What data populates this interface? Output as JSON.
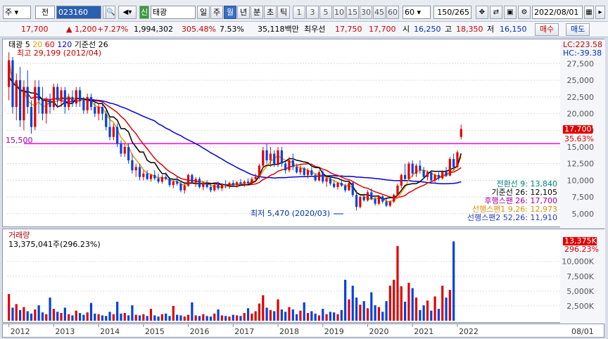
{
  "toolbar": {
    "type_combo": "주",
    "prefix_label": "전",
    "code": "023160",
    "market_badge": "신",
    "name": "태광",
    "periods": [
      "일",
      "주",
      "월",
      "년",
      "분",
      "초",
      "틱"
    ],
    "active_period": "월",
    "nums": [
      "1",
      "3",
      "5",
      "10",
      "15",
      "30",
      "45",
      "60"
    ],
    "count_value": "60",
    "page_counter": "150",
    "page_total": "/265",
    "date": "2022/08/01"
  },
  "quote": {
    "price": "17,700",
    "change_arrow": "▲",
    "change": "1,200",
    "change_pct": "+7.27%",
    "volume": "1,994,302",
    "vol_ratio": "305.48%",
    "turnover": "7.53%",
    "amount": "35,118백만",
    "best_sell_label": "최우선",
    "best_sell": "17,750",
    "best_buy": "17,700",
    "low_label": "시",
    "open": "16,250",
    "high_label": "고",
    "high": "18,350",
    "low2_label": "저",
    "low": "16,150",
    "buy_btn": "매수",
    "sell_btn": "매도"
  },
  "price_pane": {
    "name": "태광",
    "ma_labels": [
      "5",
      "20",
      "60",
      "120",
      "기준선 26"
    ],
    "high_note": "최고 29,199 (2012/04)",
    "low_note": "최저 5,470 (2020/03)",
    "lc": "LC:223.58",
    "hc": "HC:-39.38",
    "y_ticks": [
      "27,500",
      "25,000",
      "22,500",
      "20,000",
      "17,500",
      "15,000",
      "12,500",
      "10,000",
      "7,500",
      "5,000"
    ],
    "current_price_tag": "17,700",
    "pct_tag": "35.63%",
    "hline_label": "15,500",
    "indicators": [
      {
        "text": "전환선 9: 13,840",
        "color": "#008080"
      },
      {
        "text": "기준선 26: 12,105",
        "color": "#000000"
      },
      {
        "text": "후행스팬 26: 17,700",
        "color": "#a000a0"
      },
      {
        "text": "선행스팬1 9,26: 12,973",
        "color": "#e09000"
      },
      {
        "text": "선행스팬2 52,26: 11,910",
        "color": "#2040c0"
      }
    ]
  },
  "volume_pane": {
    "title": "거래량",
    "value": "13,375,041주(296.23%)",
    "y_ticks": [
      "10,000K",
      "7,500K",
      "5,000K",
      "2,500K"
    ],
    "tag": "13,375K",
    "tag_pct": "296.23%"
  },
  "x_axis": {
    "years": [
      "2012",
      "2013",
      "2014",
      "2015",
      "2016",
      "2017",
      "2018",
      "2019",
      "2020",
      "2021",
      "2022"
    ],
    "right_label": "08/01"
  },
  "chart_data": {
    "type": "candlestick",
    "ylim": [
      3500,
      30500
    ],
    "hline": 15500,
    "candles": [
      [
        24000,
        29199,
        22000,
        28000
      ],
      [
        28000,
        28500,
        20000,
        21000
      ],
      [
        21000,
        26000,
        19000,
        25000
      ],
      [
        25000,
        27000,
        18000,
        19000
      ],
      [
        19000,
        25000,
        17500,
        24000
      ],
      [
        24000,
        26500,
        20000,
        21000
      ],
      [
        21000,
        22000,
        17000,
        18000
      ],
      [
        18000,
        25000,
        17500,
        24000
      ],
      [
        24000,
        25000,
        20000,
        22000
      ],
      [
        22000,
        24000,
        19000,
        20000
      ],
      [
        20000,
        22500,
        18500,
        22000
      ],
      [
        22000,
        23000,
        20000,
        21000
      ],
      [
        21000,
        24500,
        20500,
        24000
      ],
      [
        24000,
        24500,
        21000,
        22000
      ],
      [
        22000,
        24000,
        21000,
        23500
      ],
      [
        23500,
        24000,
        20000,
        21000
      ],
      [
        21000,
        23000,
        20500,
        22500
      ],
      [
        22500,
        23500,
        21000,
        21500
      ],
      [
        21500,
        24000,
        21000,
        23500
      ],
      [
        23500,
        24000,
        21000,
        22000
      ],
      [
        22000,
        22500,
        20000,
        20500
      ],
      [
        20500,
        23000,
        20000,
        22500
      ],
      [
        22500,
        23000,
        20500,
        21000
      ],
      [
        21000,
        22000,
        19500,
        20000
      ],
      [
        20000,
        21500,
        19000,
        21000
      ],
      [
        21000,
        22000,
        19000,
        20000
      ],
      [
        20000,
        20500,
        17500,
        18000
      ],
      [
        18000,
        19500,
        16000,
        16500
      ],
      [
        16500,
        18500,
        16000,
        18000
      ],
      [
        18000,
        18500,
        15000,
        15500
      ],
      [
        15500,
        16000,
        13500,
        14000
      ],
      [
        14000,
        15500,
        13500,
        15000
      ],
      [
        15000,
        15500,
        12500,
        13000
      ],
      [
        13000,
        14000,
        11000,
        11500
      ],
      [
        11500,
        12500,
        10500,
        12000
      ],
      [
        12000,
        12500,
        10000,
        10500
      ],
      [
        10500,
        11500,
        10000,
        11000
      ],
      [
        11000,
        11500,
        10000,
        10200
      ],
      [
        10200,
        11000,
        9800,
        10800
      ],
      [
        10800,
        11500,
        10000,
        10300
      ],
      [
        10300,
        11000,
        9500,
        9800
      ],
      [
        9800,
        10800,
        9500,
        10500
      ],
      [
        10500,
        11200,
        10000,
        10200
      ],
      [
        10200,
        10500,
        9000,
        9300
      ],
      [
        9300,
        10000,
        8800,
        9800
      ],
      [
        9800,
        10500,
        9200,
        9500
      ],
      [
        9500,
        10000,
        8200,
        8500
      ],
      [
        8500,
        9500,
        8000,
        9200
      ],
      [
        9200,
        11000,
        9000,
        10800
      ],
      [
        10800,
        11000,
        9500,
        9700
      ],
      [
        9700,
        10500,
        9000,
        10200
      ],
      [
        10200,
        10500,
        8800,
        9000
      ],
      [
        9000,
        9800,
        8500,
        9500
      ],
      [
        9500,
        10000,
        8800,
        9000
      ],
      [
        9000,
        9500,
        8200,
        8500
      ],
      [
        8500,
        9500,
        8300,
        9300
      ],
      [
        9300,
        9800,
        8500,
        8800
      ],
      [
        8800,
        9600,
        8400,
        9400
      ],
      [
        9400,
        10000,
        8800,
        9200
      ],
      [
        9200,
        9800,
        8700,
        9600
      ],
      [
        9600,
        10000,
        9000,
        9300
      ],
      [
        9300,
        9900,
        8900,
        9700
      ],
      [
        9700,
        10200,
        9200,
        9500
      ],
      [
        9500,
        10000,
        9000,
        9800
      ],
      [
        9800,
        10300,
        9400,
        9600
      ],
      [
        9600,
        10500,
        9300,
        10200
      ],
      [
        10200,
        11000,
        9800,
        10500
      ],
      [
        10500,
        12500,
        10200,
        12200
      ],
      [
        12200,
        15000,
        11800,
        14500
      ],
      [
        14500,
        15500,
        12500,
        13000
      ],
      [
        13000,
        15000,
        12000,
        14000
      ],
      [
        14000,
        14500,
        12000,
        12500
      ],
      [
        12500,
        15000,
        12000,
        14500
      ],
      [
        14500,
        15000,
        12000,
        12500
      ],
      [
        12500,
        13000,
        11000,
        11500
      ],
      [
        11500,
        13500,
        11200,
        13000
      ],
      [
        13000,
        14000,
        11500,
        12000
      ],
      [
        12000,
        12500,
        11000,
        11200
      ],
      [
        11200,
        12200,
        10800,
        11800
      ],
      [
        11800,
        12000,
        10500,
        10800
      ],
      [
        10800,
        11800,
        10300,
        11500
      ],
      [
        11500,
        12000,
        10500,
        10800
      ],
      [
        10800,
        11000,
        9800,
        10000
      ],
      [
        10000,
        11500,
        9800,
        11200
      ],
      [
        11200,
        11500,
        9500,
        9800
      ],
      [
        9800,
        10500,
        9000,
        10300
      ],
      [
        10300,
        10800,
        9200,
        9500
      ],
      [
        9500,
        10000,
        8800,
        9000
      ],
      [
        9000,
        9800,
        8600,
        9600
      ],
      [
        9600,
        10200,
        9000,
        9200
      ],
      [
        9200,
        9500,
        8200,
        8500
      ],
      [
        8500,
        9800,
        8400,
        9600
      ],
      [
        9600,
        9800,
        7500,
        7800
      ],
      [
        7800,
        8500,
        5470,
        6000
      ],
      [
        6000,
        7800,
        5800,
        7500
      ],
      [
        7500,
        8000,
        6800,
        7000
      ],
      [
        7000,
        8500,
        6800,
        8200
      ],
      [
        8200,
        8800,
        7000,
        7200
      ],
      [
        7200,
        7500,
        6200,
        6500
      ],
      [
        6500,
        7800,
        6300,
        7600
      ],
      [
        7600,
        7800,
        6500,
        6800
      ],
      [
        6800,
        7200,
        6000,
        6200
      ],
      [
        6200,
        7000,
        6000,
        6800
      ],
      [
        6800,
        8000,
        6600,
        7800
      ],
      [
        7800,
        9500,
        7600,
        9200
      ],
      [
        9200,
        11000,
        8800,
        10800
      ],
      [
        10800,
        12500,
        9800,
        10200
      ],
      [
        10200,
        12800,
        10000,
        12500
      ],
      [
        12500,
        13000,
        10500,
        11000
      ],
      [
        11000,
        12500,
        10500,
        12200
      ],
      [
        12200,
        13000,
        11000,
        11500
      ],
      [
        11500,
        12000,
        10200,
        10500
      ],
      [
        10500,
        11500,
        10000,
        11200
      ],
      [
        11200,
        11500,
        9800,
        10000
      ],
      [
        10000,
        11000,
        9700,
        10800
      ],
      [
        10800,
        11200,
        10000,
        10300
      ],
      [
        10300,
        11500,
        10100,
        11300
      ],
      [
        11300,
        12000,
        10500,
        10700
      ],
      [
        10700,
        13500,
        10600,
        13200
      ],
      [
        13200,
        14000,
        11500,
        12000
      ],
      [
        12000,
        14500,
        11800,
        14200
      ],
      [
        16500,
        18350,
        16150,
        17700
      ]
    ],
    "volumes": [
      4500,
      2200,
      2800,
      1800,
      2300,
      1600,
      1200,
      1900,
      2600,
      1400,
      1100,
      3900,
      2000,
      1500,
      1300,
      2200,
      1100,
      900,
      1700,
      1300,
      1000,
      1400,
      3000,
      1200,
      1100,
      900,
      800,
      1500,
      1100,
      3200,
      1200,
      1300,
      900,
      2600,
      1000,
      900,
      1100,
      800,
      2000,
      900,
      700,
      1100,
      1200,
      800,
      2500,
      1000,
      900,
      700,
      1000,
      3100,
      900,
      800,
      1100,
      800,
      700,
      1200,
      1900,
      900,
      800,
      700,
      1000,
      900,
      800,
      1300,
      2100,
      1200,
      1600,
      2900,
      4300,
      2200,
      1800,
      1600,
      3600,
      1900,
      1500,
      2300,
      1900,
      1100,
      1700,
      3100,
      1300,
      1600,
      1200,
      900,
      2000,
      1100,
      1500,
      1400,
      1100,
      1800,
      6900,
      3600,
      5900,
      3900,
      2700,
      3300,
      2100,
      4800,
      2600,
      2300,
      1500,
      3300,
      5900,
      6900,
      12600,
      5800,
      3200,
      6400,
      5500,
      3900,
      1800,
      2600,
      3400,
      1700,
      4100,
      2000,
      5900,
      3900,
      5200,
      13375
    ],
    "ma": {
      "ma5": {
        "color": "#000000"
      },
      "ma20": {
        "color": "#e89a00"
      },
      "ma60": {
        "color": "#e00000"
      },
      "ma120": {
        "color": "#0000d0"
      }
    }
  }
}
